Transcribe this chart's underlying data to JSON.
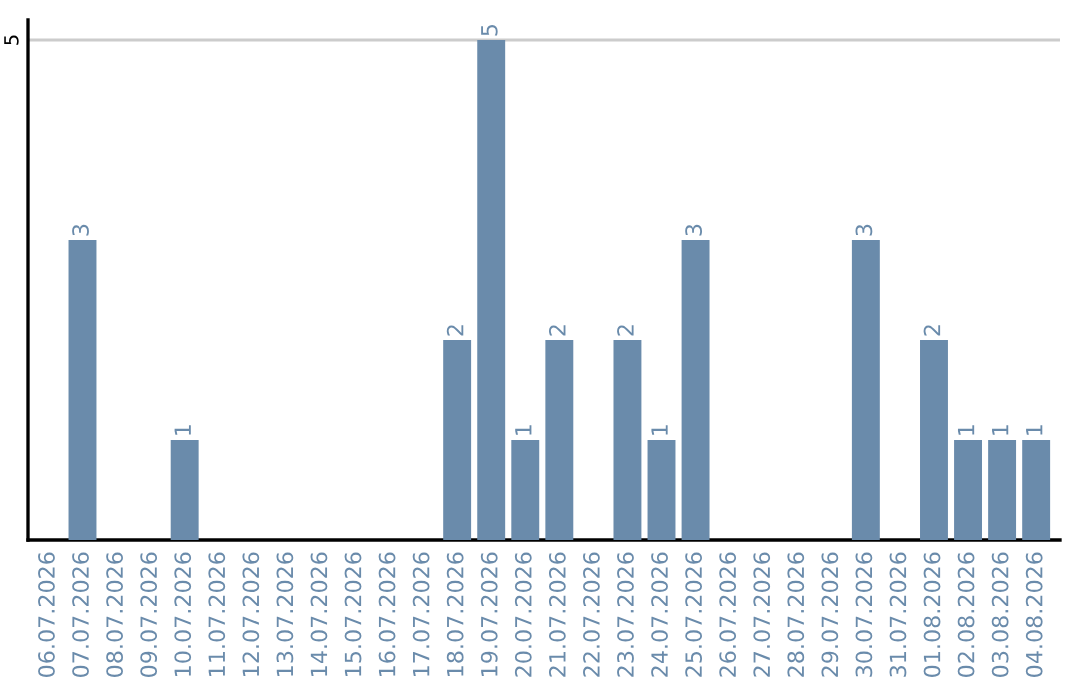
{
  "chart_data": {
    "type": "bar",
    "categories": [
      "06.07.2026",
      "07.07.2026",
      "08.07.2026",
      "09.07.2026",
      "10.07.2026",
      "11.07.2026",
      "12.07.2026",
      "13.07.2026",
      "14.07.2026",
      "15.07.2026",
      "16.07.2026",
      "17.07.2026",
      "18.07.2026",
      "19.07.2026",
      "20.07.2026",
      "21.07.2026",
      "22.07.2026",
      "23.07.2026",
      "24.07.2026",
      "25.07.2026",
      "26.07.2026",
      "27.07.2026",
      "28.07.2026",
      "29.07.2026",
      "30.07.2026",
      "31.07.2026",
      "01.08.2026",
      "02.08.2026",
      "03.08.2026",
      "04.08.2026"
    ],
    "values": [
      null,
      3,
      null,
      null,
      1,
      null,
      null,
      null,
      null,
      null,
      null,
      null,
      2,
      5,
      1,
      2,
      null,
      2,
      1,
      3,
      null,
      null,
      null,
      null,
      3,
      null,
      2,
      1,
      1,
      1
    ],
    "color": "#6a8bab",
    "ylim": [
      0,
      5.2
    ],
    "yticks": [
      5
    ],
    "grid": "y",
    "data_labels": true
  }
}
